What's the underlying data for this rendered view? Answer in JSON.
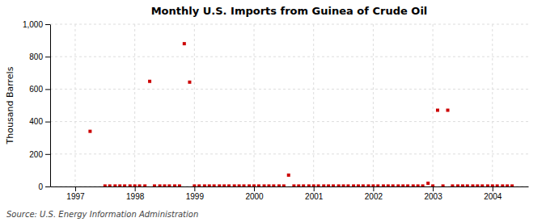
{
  "chart_data": {
    "type": "scatter",
    "title": "Monthly U.S. Imports from Guinea of Crude Oil",
    "y_label": "Thousand Barrels",
    "source": "Source: U.S. Energy Information Administration",
    "x": [
      1997.25,
      1997.5,
      1997.58,
      1997.67,
      1997.75,
      1997.83,
      1997.92,
      1998.0,
      1998.08,
      1998.17,
      1998.25,
      1998.33,
      1998.42,
      1998.5,
      1998.58,
      1998.67,
      1998.75,
      1998.83,
      1998.92,
      1999.0,
      1999.08,
      1999.17,
      1999.25,
      1999.33,
      1999.42,
      1999.5,
      1999.58,
      1999.67,
      1999.75,
      1999.83,
      1999.92,
      2000.0,
      2000.08,
      2000.17,
      2000.25,
      2000.33,
      2000.42,
      2000.5,
      2000.58,
      2000.67,
      2000.75,
      2000.83,
      2000.92,
      2001.0,
      2001.08,
      2001.17,
      2001.25,
      2001.33,
      2001.42,
      2001.5,
      2001.58,
      2001.67,
      2001.75,
      2001.83,
      2001.92,
      2002.0,
      2002.08,
      2002.17,
      2002.25,
      2002.33,
      2002.42,
      2002.5,
      2002.58,
      2002.67,
      2002.75,
      2002.83,
      2002.92,
      2003.0,
      2003.08,
      2003.17,
      2003.25,
      2003.33,
      2003.42,
      2003.5,
      2003.58,
      2003.67,
      2003.75,
      2003.83,
      2003.92,
      2004.0,
      2004.08,
      2004.17,
      2004.25,
      2004.33
    ],
    "values": [
      340,
      3,
      3,
      3,
      3,
      3,
      3,
      3,
      3,
      3,
      648,
      3,
      3,
      3,
      3,
      3,
      3,
      880,
      643,
      3,
      3,
      3,
      3,
      3,
      3,
      3,
      3,
      3,
      3,
      3,
      3,
      3,
      3,
      3,
      3,
      3,
      3,
      3,
      70,
      3,
      3,
      3,
      3,
      3,
      3,
      3,
      3,
      3,
      3,
      3,
      3,
      3,
      3,
      3,
      3,
      3,
      3,
      3,
      3,
      3,
      3,
      3,
      3,
      3,
      3,
      3,
      20,
      3,
      470,
      3,
      470,
      3,
      3,
      3,
      3,
      3,
      3,
      3,
      3,
      3,
      3,
      3,
      3,
      3
    ],
    "color": "#cc0000",
    "marker": "square",
    "grid": true,
    "xlim": [
      1996.58,
      2004.6
    ],
    "xticks": [
      1997,
      1998,
      1999,
      2000,
      2001,
      2002,
      2003,
      2004
    ],
    "ylim": [
      0,
      1000
    ],
    "yticks": [
      0,
      200,
      400,
      600,
      800,
      {
        "value": 1000,
        "label": "1,000"
      }
    ]
  }
}
